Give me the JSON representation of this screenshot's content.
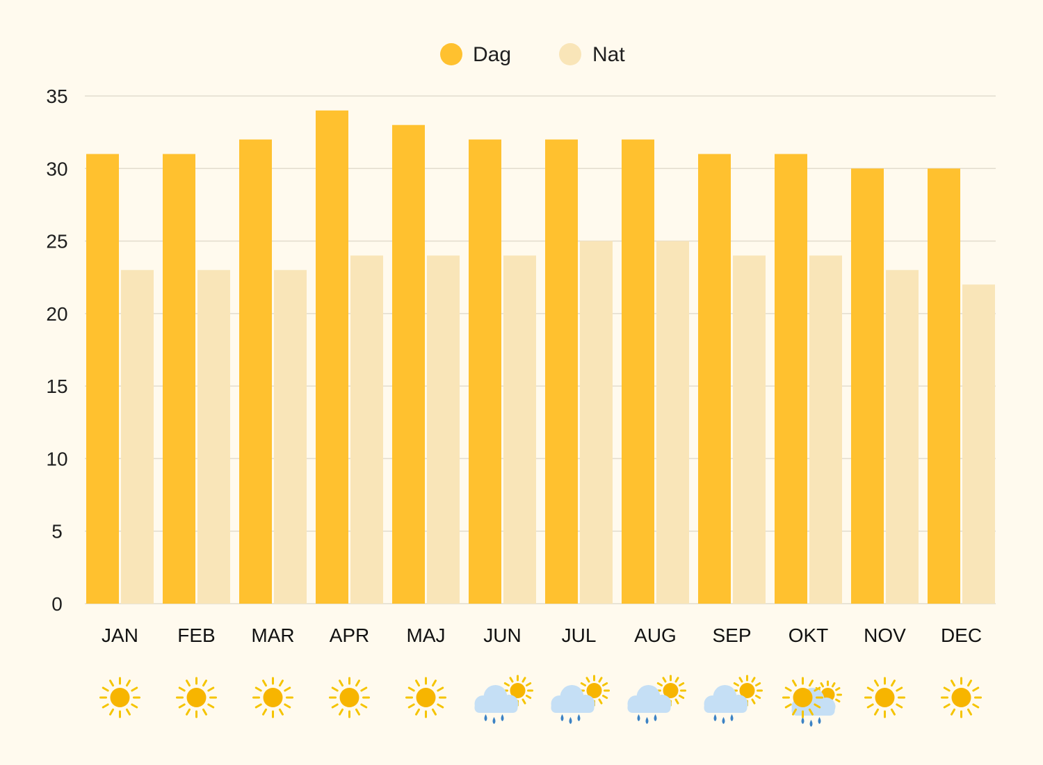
{
  "chart_data": {
    "type": "bar",
    "categories": [
      "JAN",
      "FEB",
      "MAR",
      "APR",
      "MAJ",
      "JUN",
      "JUL",
      "AUG",
      "SEP",
      "OKT",
      "NOV",
      "DEC"
    ],
    "series": [
      {
        "name": "Dag",
        "color": "#ffc12f",
        "values": [
          31,
          31,
          32,
          34,
          33,
          32,
          32,
          32,
          31,
          31,
          30,
          30
        ]
      },
      {
        "name": "Nat",
        "color": "#f9e5b8",
        "values": [
          23,
          23,
          23,
          24,
          24,
          24,
          25,
          25,
          24,
          24,
          23,
          22
        ]
      }
    ],
    "ylim": [
      0,
      35
    ],
    "yticks": [
      0,
      5,
      10,
      15,
      20,
      25,
      30,
      35
    ],
    "grid": true,
    "legend_position": "top-center",
    "weather_icons": [
      "sun-icon",
      "sun-icon",
      "sun-icon",
      "sun-icon",
      "sun-icon",
      "rain-cloud-sun-icon",
      "rain-cloud-sun-icon",
      "rain-cloud-sun-icon",
      "rain-cloud-sun-icon",
      "sun-rain-cloud-icon",
      "sun-icon",
      "sun-icon"
    ]
  },
  "colors": {
    "background": "#fffaee",
    "sun": "#f7b500",
    "sun_ray": "#f5c400",
    "cloud": "#c5dff5",
    "rain": "#3b82c4",
    "grid": "#e2dccd"
  }
}
